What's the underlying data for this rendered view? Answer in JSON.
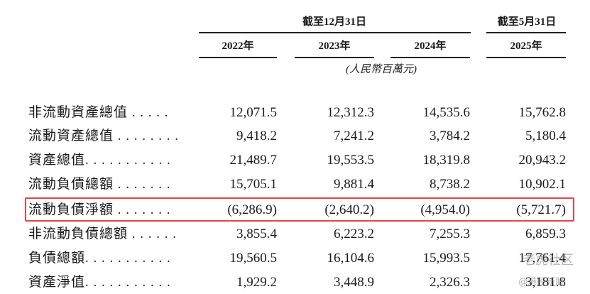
{
  "header": {
    "period_groups": [
      "截至12月31日",
      "截至5月31日"
    ],
    "years": [
      "2022年",
      "2023年",
      "2024年",
      "2025年"
    ],
    "unit": "(人民幣百萬元)"
  },
  "table": {
    "rows": [
      [
        "非流動資產總值 . . . . .",
        "12,071.5",
        "12,312.3",
        "14,535.6",
        "15,762.8"
      ],
      [
        "流動資產總值 . . . . . . . .",
        "9,418.2",
        "7,241.2",
        "3,784.2",
        "5,180.4"
      ],
      [
        "資產總值. . . . . . . . . . .",
        "21,489.7",
        "19,553.5",
        "18,319.8",
        "20,943.2"
      ],
      [
        "流動負債總額 . . . . . . .",
        "15,705.1",
        "9,881.4",
        "8,738.2",
        "10,902.1"
      ],
      [
        "流動負債淨額 . . . . . . .",
        "(6,286.9)",
        "(2,640.2)",
        "(4,954.0)",
        "(5,721.7)"
      ],
      [
        "非流動負債總額 . . . . . .",
        "3,855.4",
        "6,223.2",
        "7,255.3",
        "6,859.3"
      ],
      [
        "負債總額. . . . . . . . . . .",
        "19,560.5",
        "16,104.6",
        "15,993.5",
        "17,761.4"
      ],
      [
        "資產淨值. . . . . . . . . . .",
        "1,929.2",
        "3,448.9",
        "2,326.3",
        "3,181.8"
      ]
    ]
  },
  "watermark": {
    "brand": "老虎社区",
    "handle": "@港股新股"
  }
}
